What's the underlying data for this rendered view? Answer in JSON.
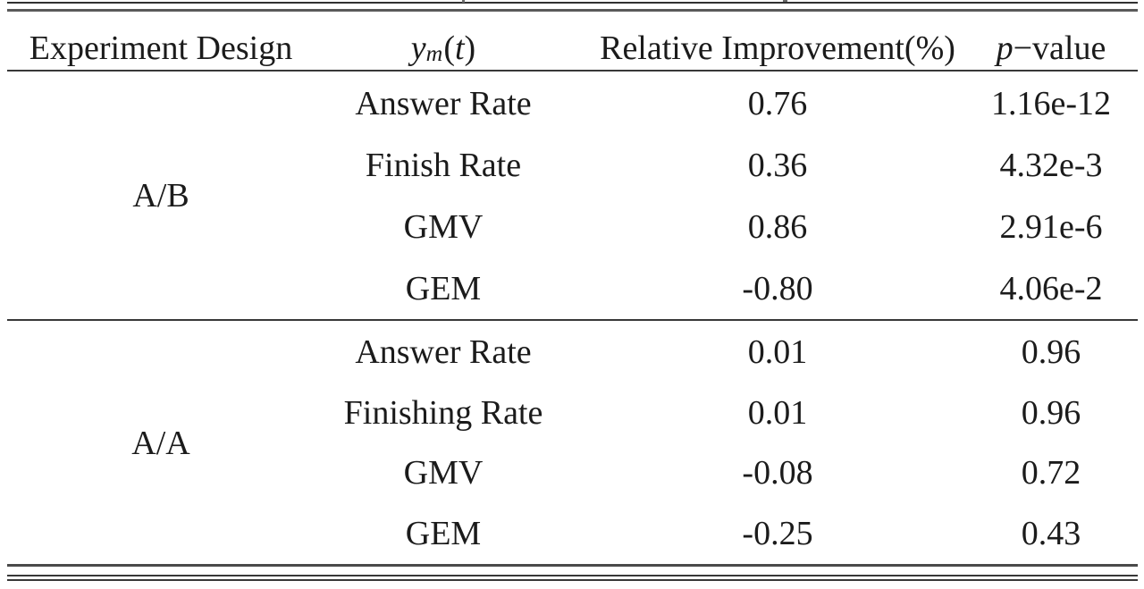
{
  "colors": {
    "text": "#1b1b1b",
    "rule": "#383838",
    "background": "#ffffff"
  },
  "table": {
    "headers": {
      "col1": "Experiment Design",
      "col2": {
        "base": "y",
        "sub": "m",
        "open": "(",
        "var": "t",
        "close": ")"
      },
      "col3": "Relative Improvement(%)",
      "col4": {
        "var": "p",
        "rest": "−value"
      }
    },
    "groups": [
      {
        "design": "A/B",
        "rows": [
          {
            "metric": "Answer Rate",
            "improvement": "0.76",
            "p_value": "1.16e-12"
          },
          {
            "metric": "Finish Rate",
            "improvement": "0.36",
            "p_value": "4.32e-3"
          },
          {
            "metric": "GMV",
            "improvement": "0.86",
            "p_value": "2.91e-6"
          },
          {
            "metric": "GEM",
            "improvement": "-0.80",
            "p_value": "4.06e-2"
          }
        ]
      },
      {
        "design": "A/A",
        "rows": [
          {
            "metric": "Answer Rate",
            "improvement": "0.01",
            "p_value": "0.96"
          },
          {
            "metric": "Finishing Rate",
            "improvement": "0.01",
            "p_value": "0.96"
          },
          {
            "metric": "GMV",
            "improvement": "-0.08",
            "p_value": "0.72"
          },
          {
            "metric": "GEM",
            "improvement": "-0.25",
            "p_value": "0.43"
          }
        ]
      }
    ]
  }
}
